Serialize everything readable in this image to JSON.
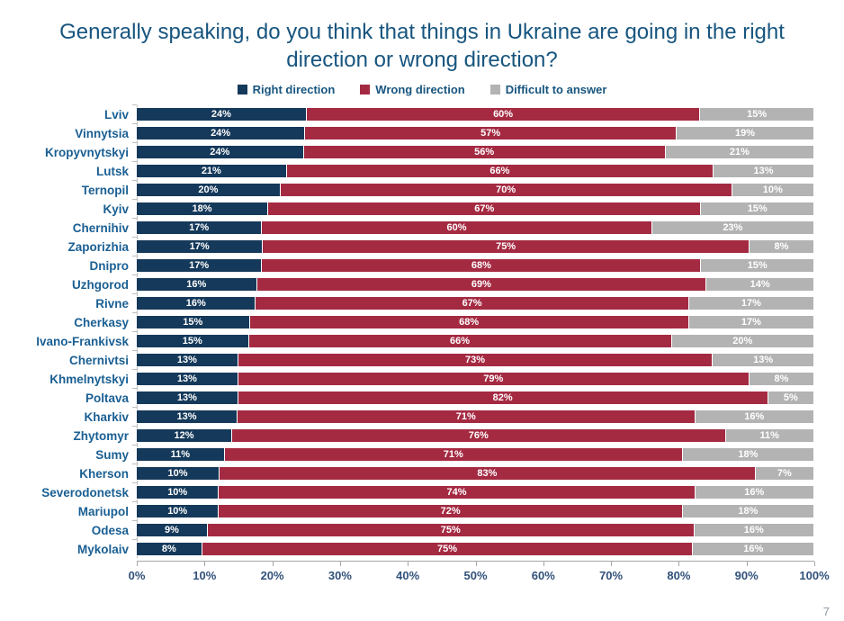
{
  "title": "Generally speaking, do you think that things in Ukraine are going in the right direction or wrong direction?",
  "page": {
    "number": "7"
  },
  "colors": {
    "title_text": "#17557f",
    "category_text": "#1a5f93",
    "axis_text": "#31517a",
    "axis_line": "#a6a6a6",
    "right_direction": "#15395a",
    "wrong_direction": "#a42a42",
    "difficult_to_answer": "#b3b3b3"
  },
  "legend": [
    {
      "label": "Right direction",
      "color": "#15395a"
    },
    {
      "label": "Wrong direction",
      "color": "#a42a42"
    },
    {
      "label": "Difficult to answer",
      "color": "#b3b3b3"
    }
  ],
  "chart_data": {
    "type": "bar",
    "stacked": true,
    "orientation": "horizontal",
    "title": "Generally speaking, do you think that things in Ukraine are going in the right direction or wrong direction?",
    "xlabel": "",
    "ylabel": "",
    "xlim": [
      0,
      100
    ],
    "grid": false,
    "legend_position": "top",
    "value_suffix": "%",
    "x_ticks": [
      "0%",
      "10%",
      "20%",
      "30%",
      "40%",
      "50%",
      "60%",
      "70%",
      "80%",
      "90%",
      "100%"
    ],
    "categories": [
      "Lviv",
      "Vinnytsia",
      "Kropyvnytskyi",
      "Lutsk",
      "Ternopil",
      "Kyiv",
      "Chernihiv",
      "Zaporizhia",
      "Dnipro",
      "Uzhgorod",
      "Rivne",
      "Cherkasy",
      "Ivano-Frankivsk",
      "Chernivtsi",
      "Khmelnytskyi",
      "Poltava",
      "Kharkiv",
      "Zhytomyr",
      "Sumy",
      "Kherson",
      "Severodonetsk",
      "Mariupol",
      "Odesa",
      "Mykolaiv"
    ],
    "series": [
      {
        "name": "Right direction",
        "color": "#15395a",
        "values": [
          24,
          24,
          24,
          21,
          20,
          18,
          17,
          17,
          17,
          16,
          16,
          15,
          15,
          13,
          13,
          13,
          13,
          12,
          11,
          10,
          10,
          10,
          9,
          8
        ]
      },
      {
        "name": "Wrong direction",
        "color": "#a42a42",
        "values": [
          60,
          57,
          56,
          66,
          70,
          67,
          60,
          75,
          68,
          69,
          67,
          68,
          66,
          73,
          79,
          82,
          71,
          76,
          71,
          83,
          74,
          72,
          75,
          75
        ]
      },
      {
        "name": "Difficult to answer",
        "color": "#b3b3b3",
        "values": [
          15,
          19,
          21,
          13,
          10,
          15,
          23,
          8,
          15,
          14,
          17,
          17,
          20,
          13,
          8,
          5,
          16,
          11,
          18,
          7,
          16,
          18,
          16,
          16
        ]
      }
    ]
  }
}
